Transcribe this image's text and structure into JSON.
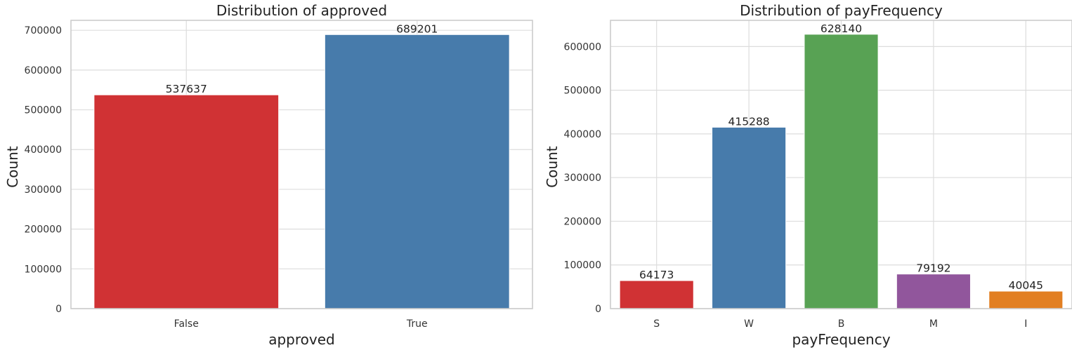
{
  "chart_data": [
    {
      "type": "bar",
      "title": "Distribution of approved",
      "xlabel": "approved",
      "ylabel": "Count",
      "categories": [
        "False",
        "True"
      ],
      "values": [
        537637,
        689201
      ],
      "data_labels": [
        "537637",
        "689201"
      ],
      "colors": [
        "#d03234",
        "#477bab"
      ],
      "ylim": [
        0,
        725000
      ],
      "yticks": [
        0,
        100000,
        200000,
        300000,
        400000,
        500000,
        600000,
        700000
      ],
      "ytick_labels": [
        "0",
        "100000",
        "200000",
        "300000",
        "400000",
        "500000",
        "600000",
        "700000"
      ],
      "grid": true
    },
    {
      "type": "bar",
      "title": "Distribution of payFrequency",
      "xlabel": "payFrequency",
      "ylabel": "Count",
      "categories": [
        "S",
        "W",
        "B",
        "M",
        "I"
      ],
      "values": [
        64173,
        415288,
        628140,
        79192,
        40045
      ],
      "data_labels": [
        "64173",
        "415288",
        "628140",
        "79192",
        "40045"
      ],
      "colors": [
        "#d03234",
        "#477bab",
        "#58a254",
        "#91569c",
        "#e27f22"
      ],
      "ylim": [
        0,
        660000
      ],
      "yticks": [
        0,
        100000,
        200000,
        300000,
        400000,
        500000,
        600000
      ],
      "ytick_labels": [
        "0",
        "100000",
        "200000",
        "300000",
        "400000",
        "500000",
        "600000"
      ],
      "grid": true
    }
  ]
}
